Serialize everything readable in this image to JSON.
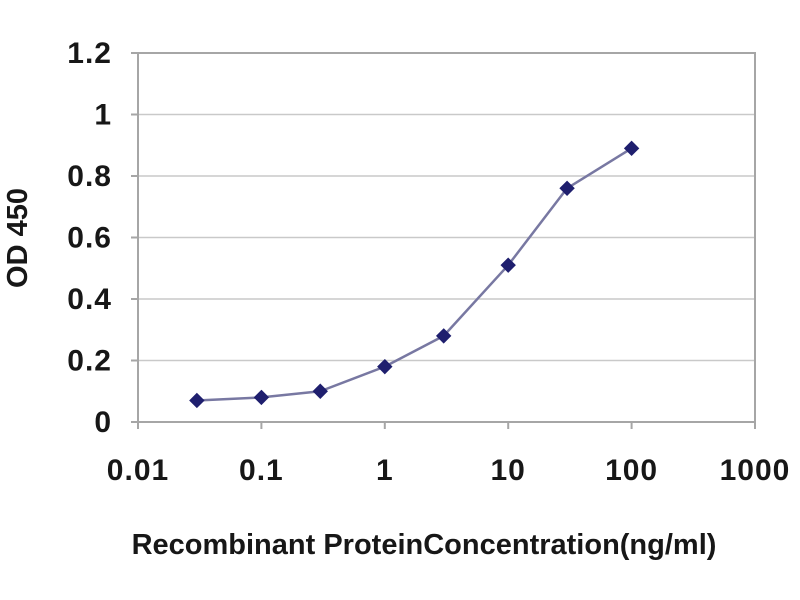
{
  "figure": {
    "background": "#ffffff"
  },
  "chart_data": {
    "type": "line",
    "title": "",
    "xlabel": "Recombinant ProteinConcentration(ng/ml)",
    "ylabel": "OD 450",
    "x_scale": "log",
    "xlim": [
      0.01,
      1000
    ],
    "ylim": [
      0,
      1.2
    ],
    "x_tick_values": [
      0.01,
      0.1,
      1,
      10,
      100,
      1000
    ],
    "x_tick_labels": [
      "0.01",
      "0.1",
      "1",
      "10",
      "100",
      "1000"
    ],
    "y_tick_values": [
      0,
      0.2,
      0.4,
      0.6,
      0.8,
      1.0,
      1.2
    ],
    "y_tick_labels": [
      "0",
      "0.2",
      "0.4",
      "0.6",
      "0.8",
      "1",
      "1.2"
    ],
    "grid": "horizontal",
    "legend": "none",
    "marker": "diamond",
    "x": [
      0.03,
      0.1,
      0.3,
      1,
      3,
      10,
      30,
      100
    ],
    "y": [
      0.07,
      0.08,
      0.1,
      0.18,
      0.28,
      0.51,
      0.76,
      0.89
    ],
    "colors": {
      "line": "#7878a2",
      "marker": "#1f1f6e",
      "frame": "#a6a6a6",
      "gridline": "#c9c9c9",
      "tick": "#a6a6a6",
      "text": "#171717",
      "background": "#ffffff"
    }
  }
}
